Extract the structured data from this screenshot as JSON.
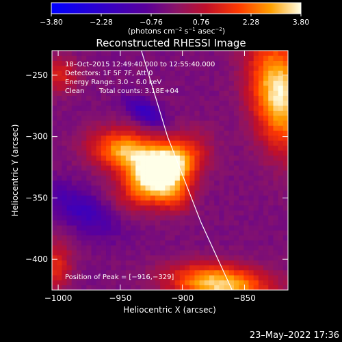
{
  "chart_data": {
    "type": "heatmap",
    "title": "Reconstructed RHESSI Image",
    "xlabel": "Heliocentric X (arcsec)",
    "ylabel": "Heliocentric Y (arcsec)",
    "xlim": [
      -1005,
      -815
    ],
    "ylim": [
      -425,
      -230
    ],
    "x_ticks": [
      -1000,
      -950,
      -900,
      -850
    ],
    "x_tick_labels": [
      "−1000",
      "−950",
      "−900",
      "−850"
    ],
    "y_ticks": [
      -250,
      -300,
      -350,
      -400
    ],
    "y_tick_labels": [
      "−250",
      "−300",
      "−350",
      "−400"
    ],
    "colorbar": {
      "min": -3.8,
      "max": 3.8,
      "ticks": [
        -3.8,
        -2.28,
        -0.76,
        0.76,
        2.28,
        3.8
      ],
      "tick_labels": [
        "−3.80",
        "−2.28",
        "−0.76",
        "0.76",
        "2.28",
        "3.80"
      ],
      "unit_label": [
        "(photons cm",
        "−2",
        " s",
        "−1",
        " asec",
        "−2",
        ")"
      ]
    },
    "info_lines": [
      "18–Oct–2015 12:49:40.000 to 12:55:40.000",
      "Detectors: 1F 5F 7F, Att 0",
      "Energy Range: 3.0 – 6.0 keV"
    ],
    "clean_label": "Clean",
    "total_counts_label": "Total counts: 3.18E+04",
    "peak_label": "Position of Peak = [−916,−329]",
    "peak": {
      "x": -916,
      "y": -329,
      "value": 3.8
    },
    "sources": [
      {
        "x": -916,
        "y": -329,
        "sx": 22,
        "sy": 13,
        "rot": 35,
        "amp": 5.2
      },
      {
        "x": -945,
        "y": -312,
        "sx": 20,
        "sy": 12,
        "rot": -10,
        "amp": 3.4
      },
      {
        "x": -905,
        "y": -350,
        "sx": 10,
        "sy": 9,
        "rot": 0,
        "amp": 1.5
      },
      {
        "x": -822,
        "y": -265,
        "sx": 16,
        "sy": 32,
        "rot": 10,
        "amp": 4.0
      },
      {
        "x": -870,
        "y": -420,
        "sx": 28,
        "sy": 11,
        "rot": -5,
        "amp": 3.8
      },
      {
        "x": -1000,
        "y": -250,
        "sx": 12,
        "sy": 10,
        "rot": 0,
        "amp": 1.6
      },
      {
        "x": -1002,
        "y": -405,
        "sx": 9,
        "sy": 14,
        "rot": 0,
        "amp": 1.8
      },
      {
        "x": -930,
        "y": -280,
        "sx": 12,
        "sy": 6,
        "rot": -30,
        "amp": -1.8
      },
      {
        "x": -980,
        "y": -360,
        "sx": 22,
        "sy": 10,
        "rot": -30,
        "amp": -1.5
      }
    ],
    "limb_line": [
      [
        -933,
        -230
      ],
      [
        -912,
        -300
      ],
      [
        -885,
        -370
      ],
      [
        -860,
        -425
      ]
    ],
    "grid": false
  },
  "footer": {
    "date": "23–May–2022 17:36"
  }
}
